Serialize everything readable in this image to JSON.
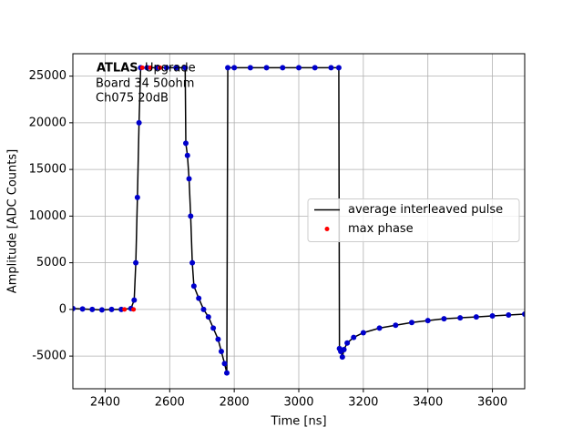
{
  "chart_data": {
    "type": "line",
    "xlabel": "Time [ns]",
    "ylabel": "Amplitude [ADC Counts]",
    "annotations": [
      "ATLAS",
      "Upgrade",
      "Board 34 50ohm",
      "Ch075 20dB"
    ],
    "xlim": [
      2300,
      3700
    ],
    "xticks": [
      2400,
      2600,
      2800,
      3000,
      3200,
      3400,
      3600
    ],
    "ylim": [
      -8500,
      27400
    ],
    "yticks": [
      -5000,
      0,
      5000,
      10000,
      15000,
      20000,
      25000
    ],
    "grid": true,
    "legend": "center right",
    "series": [
      {
        "name": "average interleaved pulse",
        "color": "#000000",
        "marker_color": "#0000cc",
        "mode": "lines+markers",
        "x": [
          2300,
          2330,
          2360,
          2390,
          2420,
          2450,
          2480,
          2490,
          2495,
          2500,
          2505,
          2510,
          2530,
          2560,
          2590,
          2620,
          2648,
          2650,
          2655,
          2660,
          2665,
          2670,
          2675,
          2690,
          2705,
          2720,
          2735,
          2750,
          2760,
          2770,
          2777,
          2780,
          2800,
          2850,
          2900,
          2950,
          3000,
          3050,
          3100,
          3124,
          3126,
          3130,
          3135,
          3140,
          3150,
          3170,
          3200,
          3250,
          3300,
          3350,
          3400,
          3450,
          3500,
          3550,
          3600,
          3650,
          3700
        ],
        "values": [
          100,
          50,
          0,
          -50,
          0,
          0,
          100,
          1000,
          5000,
          12000,
          20000,
          25900,
          25900,
          25900,
          25900,
          25900,
          25900,
          17800,
          16500,
          14000,
          10000,
          5000,
          2500,
          1200,
          0,
          -800,
          -2000,
          -3200,
          -4500,
          -5800,
          -6800,
          25900,
          25900,
          25900,
          25900,
          25900,
          25900,
          25900,
          25900,
          25900,
          -4200,
          -4500,
          -5100,
          -4300,
          -3600,
          -3000,
          -2500,
          -2000,
          -1700,
          -1400,
          -1200,
          -1000,
          -900,
          -800,
          -700,
          -600,
          -500
        ]
      },
      {
        "name": "max phase",
        "color": "#ff0000",
        "mode": "markers",
        "x": [
          2460,
          2488,
          2515,
          2540,
          2570
        ],
        "values": [
          0,
          0,
          25900,
          25900,
          25900
        ]
      }
    ]
  }
}
